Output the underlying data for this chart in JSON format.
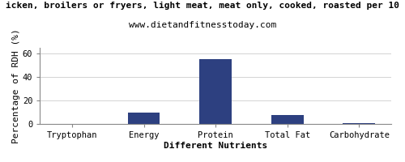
{
  "title_line1": "icken, broilers or fryers, light meat, meat only, cooked, roasted per 10",
  "title_line2": "www.dietandfitnesstoday.com",
  "categories": [
    "Tryptophan",
    "Energy",
    "Protein",
    "Total Fat",
    "Carbohydrate"
  ],
  "values": [
    0.3,
    10.0,
    55.0,
    8.0,
    1.0
  ],
  "bar_color": "#2d4080",
  "ylabel": "Percentage of RDH (%)",
  "xlabel": "Different Nutrients",
  "ylim": [
    0,
    65
  ],
  "yticks": [
    0,
    20,
    40,
    60
  ],
  "background_color": "#ffffff",
  "plot_bg_color": "#ffffff",
  "title_fontsize": 8,
  "subtitle_fontsize": 8,
  "axis_label_fontsize": 8,
  "tick_fontsize": 7.5,
  "bar_width": 0.45
}
